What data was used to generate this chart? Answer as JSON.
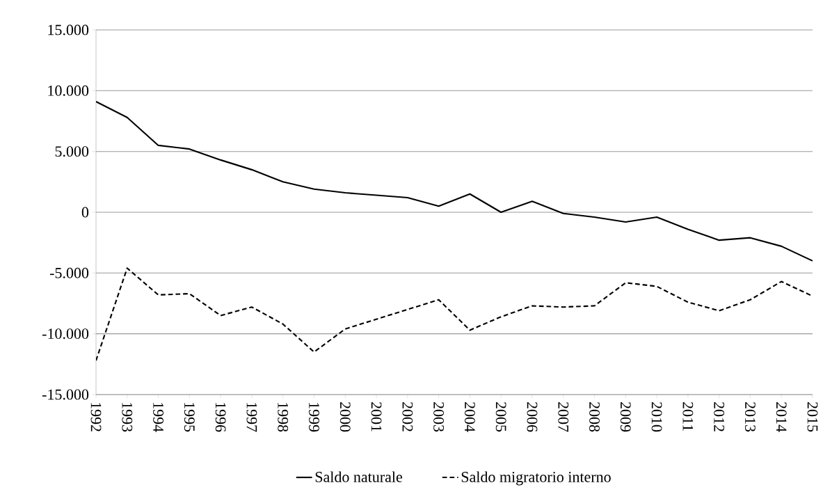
{
  "chart_data": {
    "type": "line",
    "categories": [
      "1992",
      "1993",
      "1994",
      "1995",
      "1996",
      "1997",
      "1998",
      "1999",
      "2000",
      "2001",
      "2002",
      "2003",
      "2004",
      "2005",
      "2006",
      "2007",
      "2008",
      "2009",
      "2010",
      "2011",
      "2012",
      "2013",
      "2014",
      "2015"
    ],
    "series": [
      {
        "name": "Saldo naturale",
        "color": "#000000",
        "line_style": "solid",
        "values": [
          9100,
          7800,
          5500,
          5200,
          4300,
          3500,
          2500,
          1900,
          1600,
          1400,
          1200,
          500,
          1500,
          0,
          900,
          -100,
          -400,
          -800,
          -400,
          -1400,
          -2300,
          -2100,
          -2800,
          -4000
        ]
      },
      {
        "name": "Saldo migratorio interno",
        "color": "#000000",
        "line_style": "dashed",
        "values": [
          -12200,
          -4600,
          -6800,
          -6700,
          -8500,
          -7800,
          -9200,
          -11500,
          -9600,
          -8800,
          -8000,
          -7200,
          -9700,
          -8600,
          -7700,
          -7800,
          -7700,
          -5800,
          -6100,
          -7400,
          -8100,
          -7200,
          -5700,
          -6900
        ]
      }
    ],
    "ylim": [
      -15000,
      15000
    ],
    "yticks": [
      {
        "value": -15000,
        "label": "-15.000"
      },
      {
        "value": -10000,
        "label": "-10.000"
      },
      {
        "value": -5000,
        "label": "-5.000"
      },
      0,
      {
        "value": 5000,
        "label": "5.000"
      },
      {
        "value": 10000,
        "label": "10.000"
      },
      {
        "value": 15000,
        "label": "15.000"
      }
    ],
    "grid": "y",
    "legend": "bottom",
    "marker": "none"
  }
}
